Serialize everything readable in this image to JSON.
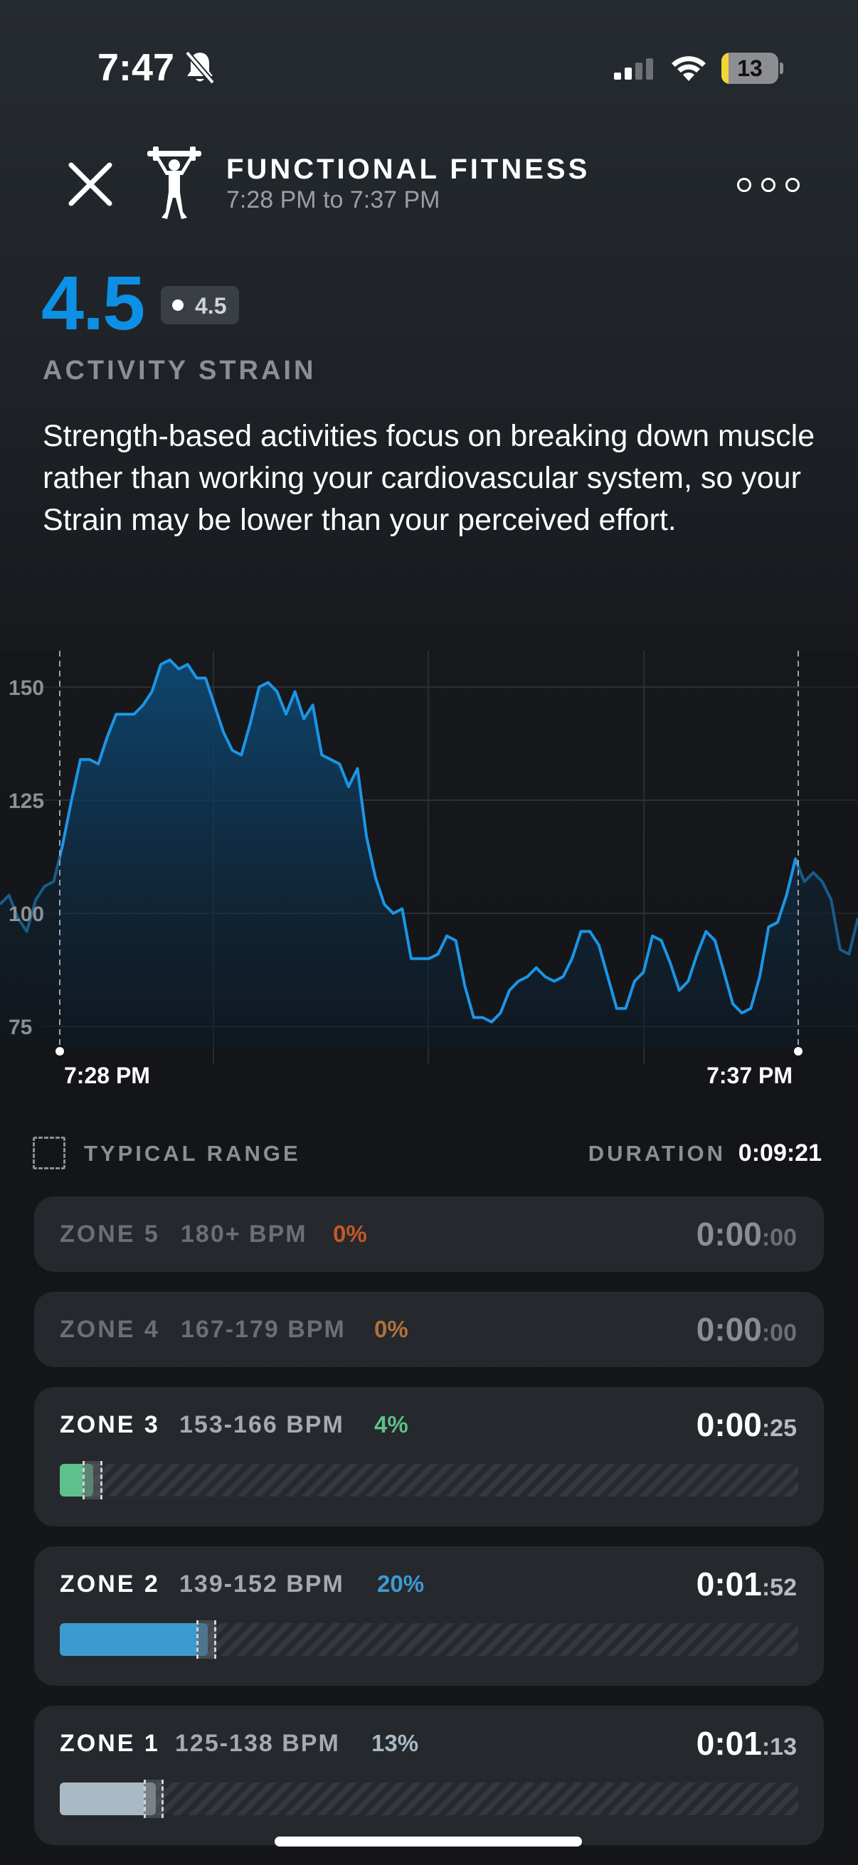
{
  "status_bar": {
    "time": "7:47",
    "battery": "13",
    "battery_level": 0.13
  },
  "header": {
    "title": "FUNCTIONAL FITNESS",
    "subtitle": "7:28 PM to 7:37 PM"
  },
  "strain": {
    "value": "4.5",
    "badge_value": "4.5",
    "label": "ACTIVITY STRAIN",
    "description": "Strength-based activities focus on breaking down muscle rather than working your cardiovascular system, so your Strain may be lower than your perceived effort."
  },
  "chart_data": {
    "type": "area",
    "y_ticks": [
      "150",
      "125",
      "100",
      "75"
    ],
    "ylim": [
      70,
      158
    ],
    "start_label": "7:28 PM",
    "end_label": "7:37 PM",
    "line_color": "#1c95e6",
    "heart_rate_series": [
      102,
      104,
      99,
      96,
      103,
      106,
      107,
      115,
      125,
      134,
      134,
      133,
      139,
      144,
      144,
      144,
      146,
      149,
      155,
      156,
      154,
      155,
      152,
      152,
      146,
      140,
      136,
      135,
      142,
      150,
      151,
      149,
      144,
      149,
      143,
      146,
      135,
      134,
      133,
      128,
      132,
      117,
      108,
      102,
      100,
      101,
      90,
      90,
      90,
      91,
      95,
      94,
      84,
      77,
      77,
      76,
      78,
      83,
      85,
      86,
      88,
      86,
      85,
      86,
      90,
      96,
      96,
      93,
      86,
      79,
      79,
      85,
      87,
      95,
      94,
      89,
      83,
      85,
      91,
      96,
      94,
      87,
      80,
      78,
      79,
      86,
      97,
      98,
      104,
      112,
      107,
      109,
      107,
      103,
      92,
      91,
      99
    ]
  },
  "legend": {
    "typical_range": "TYPICAL RANGE",
    "duration_label": "DURATION",
    "duration_value": "0:09:21"
  },
  "zones": [
    {
      "name": "ZONE 5",
      "bpm": "180+ BPM",
      "pct": "0%",
      "time_main": "0:00",
      "time_sec": ":00",
      "color": "#c4572a",
      "fill": 0
    },
    {
      "name": "ZONE 4",
      "bpm": "167-179 BPM",
      "pct": "0%",
      "time_main": "0:00",
      "time_sec": ":00",
      "color": "#b0713a",
      "fill": 0
    },
    {
      "name": "ZONE 3",
      "bpm": "153-166 BPM",
      "pct": "4%",
      "time_main": "0:00",
      "time_sec": ":25",
      "color": "#5ec08a",
      "fill": 0.045
    },
    {
      "name": "ZONE 2",
      "bpm": "139-152 BPM",
      "pct": "20%",
      "time_main": "0:01",
      "time_sec": ":52",
      "color": "#3d9ad1",
      "fill": 0.2
    },
    {
      "name": "ZONE 1",
      "bpm": "125-138 BPM",
      "pct": "13%",
      "time_main": "0:01",
      "time_sec": ":13",
      "color": "#aab9c6",
      "fill": 0.13
    }
  ]
}
